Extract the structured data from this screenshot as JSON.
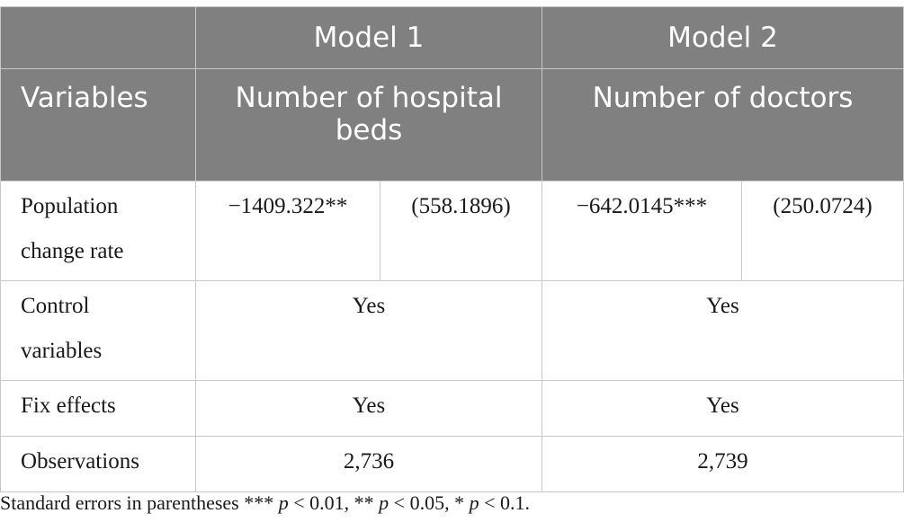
{
  "header": {
    "model1": "Model 1",
    "model2": "Model 2",
    "variables": "Variables",
    "dv1": "Number of hospital beds",
    "dv2": "Number of doctors"
  },
  "rows": {
    "population": {
      "label_line1": "Population",
      "label_line2": "change rate",
      "m1_coef": "−1409.322**",
      "m1_se": "(558.1896)",
      "m2_coef": "−642.0145***",
      "m2_se": "(250.0724)"
    },
    "controls": {
      "label_line1": "Control",
      "label_line2": "variables",
      "m1": "Yes",
      "m2": "Yes"
    },
    "fix": {
      "label": "Fix effects",
      "m1": "Yes",
      "m2": "Yes"
    },
    "obs": {
      "label": "Observations",
      "m1": "2,736",
      "m2": "2,739"
    }
  },
  "note": {
    "prefix": "Standard errors in parentheses *** ",
    "p1": "p",
    "t1": " < 0.01, ** ",
    "p2": "p",
    "t2": " < 0.05, * ",
    "p3": "p",
    "t3": " < 0.1."
  }
}
